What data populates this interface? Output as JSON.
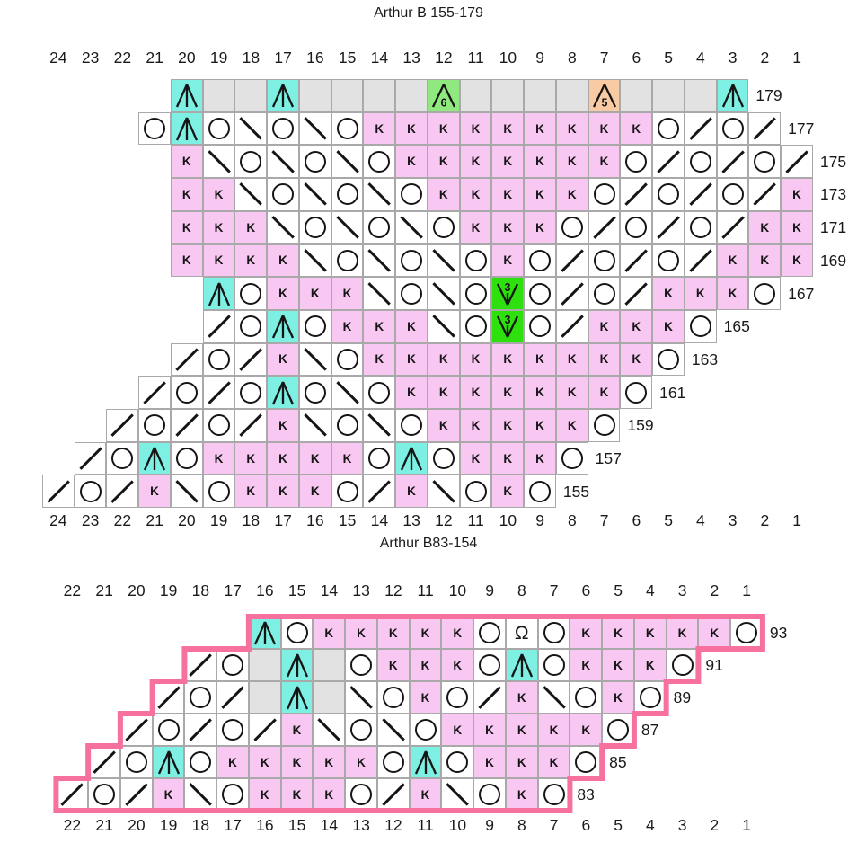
{
  "page": {
    "background": "#ffffff"
  },
  "palette": {
    "ink": "#151515",
    "grid_line": "#a9a9a9",
    "white": "#ffffff",
    "pink": "#f8c7f2",
    "cyan": "#7df0e3",
    "grey": "#e2e2e2",
    "green_soft": "#8fe97e",
    "green_vivid": "#2ee00e",
    "peach": "#f8cba4",
    "outline_pink": "#f7719f"
  },
  "symbols": {
    "O": {
      "name": "yarn-over-icon",
      "bg": "white"
    },
    "/": {
      "name": "k2tog-decrease-icon",
      "bg": "white"
    },
    "\\": {
      "name": "ssk-decrease-icon",
      "bg": "white"
    },
    "K": {
      "name": "knit-stitch-icon",
      "bg": "pink"
    },
    "A": {
      "name": "centered-double-decrease-icon",
      "bg": "cyan"
    },
    "A6": {
      "name": "gather-6-icon",
      "bg": "green_soft",
      "digit": "6"
    },
    "A5": {
      "name": "gather-5-icon",
      "bg": "peach",
      "digit": "5"
    },
    "V3": {
      "name": "make-3-icon",
      "bg": "green_vivid",
      "digit": "3"
    },
    "TW": {
      "name": "twisted-yarn-over-icon",
      "bg": "white"
    },
    "-": {
      "name": "no-stitch",
      "bg": "grey"
    }
  },
  "chart_data": [
    {
      "type": "table",
      "title": "Arthur B 155-179",
      "outlined": false,
      "columns": [
        24,
        23,
        22,
        21,
        20,
        19,
        18,
        17,
        16,
        15,
        14,
        13,
        12,
        11,
        10,
        9,
        8,
        7,
        6,
        5,
        4,
        3,
        2,
        1
      ],
      "rows": [
        {
          "num": 179,
          "start": 20,
          "cells": [
            "A",
            "-",
            "-",
            "A",
            "-",
            "-",
            "-",
            "-",
            "A6",
            "-",
            "-",
            "-",
            "-",
            "A5",
            "-",
            "-",
            "-",
            "A"
          ]
        },
        {
          "num": 177,
          "start": 21,
          "cells": [
            "O",
            "A",
            "O",
            "\\",
            "O",
            "\\",
            "O",
            "K",
            "K",
            "K",
            "K",
            "K",
            "K",
            "K",
            "K",
            "K",
            "O",
            "/",
            "O",
            "/"
          ]
        },
        {
          "num": 175,
          "start": 20,
          "cells": [
            "K",
            "\\",
            "O",
            "\\",
            "O",
            "\\",
            "O",
            "K",
            "K",
            "K",
            "K",
            "K",
            "K",
            "K",
            "O",
            "/",
            "O",
            "/",
            "O",
            "/"
          ]
        },
        {
          "num": 173,
          "start": 20,
          "cells": [
            "K",
            "K",
            "\\",
            "O",
            "\\",
            "O",
            "\\",
            "O",
            "K",
            "K",
            "K",
            "K",
            "K",
            "O",
            "/",
            "O",
            "/",
            "O",
            "/",
            "K"
          ]
        },
        {
          "num": 171,
          "start": 20,
          "cells": [
            "K",
            "K",
            "K",
            "\\",
            "O",
            "\\",
            "O",
            "\\",
            "O",
            "K",
            "K",
            "K",
            "O",
            "/",
            "O",
            "/",
            "O",
            "/",
            "K",
            "K"
          ]
        },
        {
          "num": 169,
          "start": 20,
          "cells": [
            "K",
            "K",
            "K",
            "K",
            "\\",
            "O",
            "\\",
            "O",
            "\\",
            "O",
            "K",
            "O",
            "/",
            "O",
            "/",
            "O",
            "/",
            "K",
            "K",
            "K"
          ]
        },
        {
          "num": 167,
          "start": 19,
          "cells": [
            "A",
            "O",
            "K",
            "K",
            "K",
            "\\",
            "O",
            "\\",
            "O",
            "V3",
            "O",
            "/",
            "O",
            "/",
            "K",
            "K",
            "K",
            "O"
          ]
        },
        {
          "num": 165,
          "start": 19,
          "cells": [
            "/",
            "O",
            "A",
            "O",
            "K",
            "K",
            "K",
            "\\",
            "O",
            "V3",
            "O",
            "/",
            "K",
            "K",
            "K",
            "O"
          ]
        },
        {
          "num": 163,
          "start": 20,
          "cells": [
            "/",
            "O",
            "/",
            "K",
            "\\",
            "O",
            "K",
            "K",
            "K",
            "K",
            "K",
            "K",
            "K",
            "K",
            "K",
            "O"
          ]
        },
        {
          "num": 161,
          "start": 21,
          "cells": [
            "/",
            "O",
            "/",
            "O",
            "A",
            "O",
            "\\",
            "O",
            "K",
            "K",
            "K",
            "K",
            "K",
            "K",
            "K",
            "O"
          ]
        },
        {
          "num": 159,
          "start": 22,
          "cells": [
            "/",
            "O",
            "/",
            "O",
            "/",
            "K",
            "\\",
            "O",
            "\\",
            "O",
            "K",
            "K",
            "K",
            "K",
            "K",
            "O"
          ]
        },
        {
          "num": 157,
          "start": 23,
          "cells": [
            "/",
            "O",
            "A",
            "O",
            "K",
            "K",
            "K",
            "K",
            "K",
            "O",
            "A",
            "O",
            "K",
            "K",
            "K",
            "O"
          ]
        },
        {
          "num": 155,
          "start": 24,
          "cells": [
            "/",
            "O",
            "/",
            "K",
            "\\",
            "O",
            "K",
            "K",
            "K",
            "O",
            "/",
            "K",
            "\\",
            "O",
            "K",
            "O"
          ]
        }
      ]
    },
    {
      "type": "table",
      "title": "Arthur B83-154",
      "outlined": true,
      "columns": [
        22,
        21,
        20,
        19,
        18,
        17,
        16,
        15,
        14,
        13,
        12,
        11,
        10,
        9,
        8,
        7,
        6,
        5,
        4,
        3,
        2,
        1
      ],
      "rows": [
        {
          "num": 93,
          "start": 16,
          "cells": [
            "A",
            "O",
            "K",
            "K",
            "K",
            "K",
            "K",
            "O",
            "TW",
            "O",
            "K",
            "K",
            "K",
            "K",
            "K",
            "O"
          ]
        },
        {
          "num": 91,
          "start": 18,
          "cells": [
            "/",
            "O",
            "-",
            "A",
            "-",
            "O",
            "K",
            "K",
            "K",
            "O",
            "A",
            "O",
            "K",
            "K",
            "K",
            "O"
          ]
        },
        {
          "num": 89,
          "start": 19,
          "cells": [
            "/",
            "O",
            "/",
            "-",
            "A",
            "-",
            "\\",
            "O",
            "K",
            "O",
            "/",
            "K",
            "\\",
            "O",
            "K",
            "O"
          ]
        },
        {
          "num": 87,
          "start": 20,
          "cells": [
            "/",
            "O",
            "/",
            "O",
            "/",
            "K",
            "\\",
            "O",
            "\\",
            "O",
            "K",
            "K",
            "K",
            "K",
            "K",
            "O"
          ]
        },
        {
          "num": 85,
          "start": 21,
          "cells": [
            "/",
            "O",
            "A",
            "O",
            "K",
            "K",
            "K",
            "K",
            "K",
            "O",
            "A",
            "O",
            "K",
            "K",
            "K",
            "O"
          ]
        },
        {
          "num": 83,
          "start": 22,
          "cells": [
            "/",
            "O",
            "/",
            "K",
            "\\",
            "O",
            "K",
            "K",
            "K",
            "O",
            "/",
            "K",
            "\\",
            "O",
            "K",
            "O"
          ]
        }
      ]
    }
  ]
}
